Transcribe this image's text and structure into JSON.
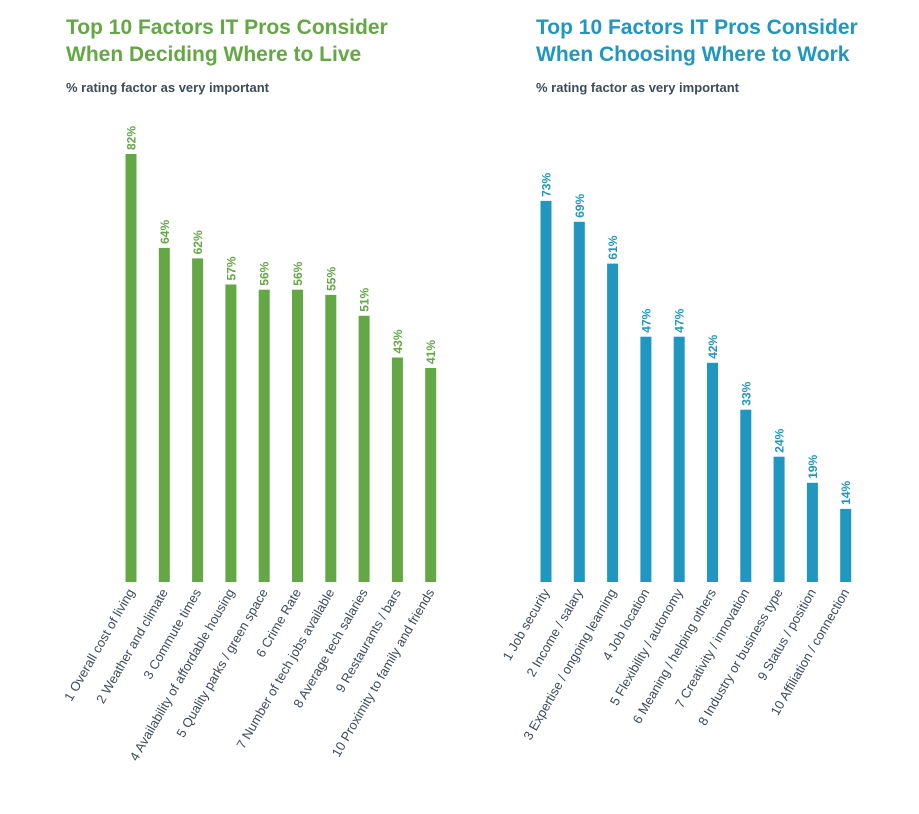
{
  "colors": {
    "green": "#63a844",
    "blue": "#2196bf",
    "label": "#3d4b5c"
  },
  "chart_data": [
    {
      "type": "bar",
      "title_line1": "Top 10 Factors IT Pros Consider",
      "title_line2": "When Deciding Where to Live",
      "subtitle": "% rating factor as very important",
      "ylim": [
        0,
        100
      ],
      "grid": false,
      "categories": [
        "1  Overall cost of living",
        "2  Weather and climate",
        "3  Commute times",
        "4  Availability of affordable housing",
        "5  Quality parks / green space",
        "6  Crime Rate",
        "7  Number of tech jobs available",
        "8  Average tech salaries",
        "9  Restaurants / bars",
        "10  Proximity to family and friends"
      ],
      "values": [
        82,
        64,
        62,
        57,
        56,
        56,
        55,
        51,
        43,
        41
      ],
      "value_labels": [
        "82%",
        "64%",
        "62%",
        "57%",
        "56%",
        "56%",
        "55%",
        "51%",
        "43%",
        "41%"
      ]
    },
    {
      "type": "bar",
      "title_line1": "Top 10 Factors IT Pros Consider",
      "title_line2": "When Choosing Where to Work",
      "subtitle": "% rating factor as very important",
      "ylim": [
        0,
        100
      ],
      "grid": false,
      "categories": [
        "1  Job security",
        "2  Income / salary",
        "3  Expertise / ongoing learning",
        "4  Job location",
        "5  Flexibility / autonomy",
        "6  Meaning / helping others",
        "7  Creativity / innovation",
        "8  Industry or business type",
        "9  Status / position",
        "10  Affiliation / connection"
      ],
      "values": [
        73,
        69,
        61,
        47,
        47,
        42,
        33,
        24,
        19,
        14
      ],
      "value_labels": [
        "73%",
        "69%",
        "61%",
        "47%",
        "47%",
        "42%",
        "33%",
        "24%",
        "19%",
        "14%"
      ]
    }
  ]
}
